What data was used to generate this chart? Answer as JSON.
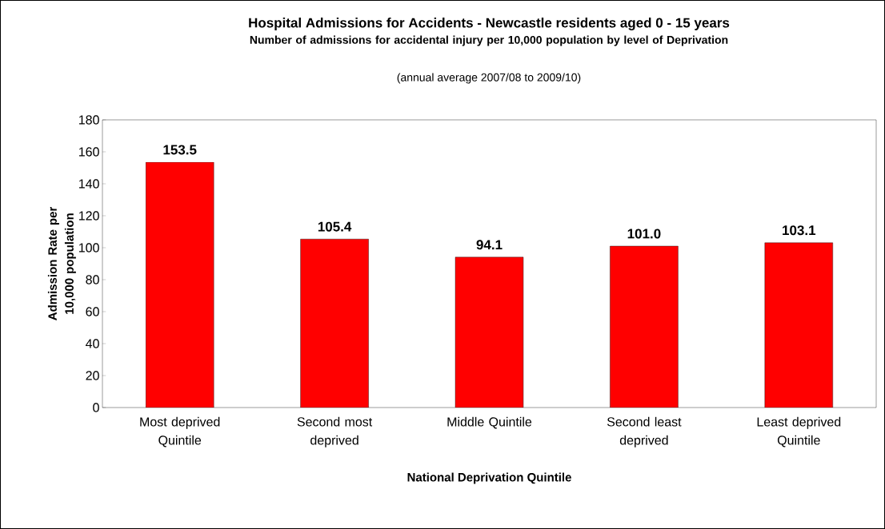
{
  "chart_data": {
    "type": "bar",
    "title": "Hospital Admissions for Accidents - Newcastle residents aged 0 - 15 years",
    "subtitle": "Number of admissions for accidental injury per 10,000 population by level of Deprivation",
    "annotations": [
      "(annual average 2007/08 to 2009/10)"
    ],
    "xlabel": "National Deprivation Quintile",
    "ylabel": "Admission Rate per 10,000 population",
    "categories": [
      "Most deprived Quintile",
      "Second most deprived",
      "Middle Quintile",
      "Second least deprived",
      "Least deprived Quintile"
    ],
    "values": [
      153.5,
      105.4,
      94.1,
      101.0,
      103.1
    ],
    "value_labels": [
      "153.5",
      "105.4",
      "94.1",
      "101.0",
      "103.1"
    ],
    "color": "#ff0000",
    "ylim": [
      0,
      180
    ],
    "yticks": [
      0,
      20,
      40,
      60,
      80,
      100,
      120,
      140,
      160,
      180
    ],
    "grid": false
  }
}
